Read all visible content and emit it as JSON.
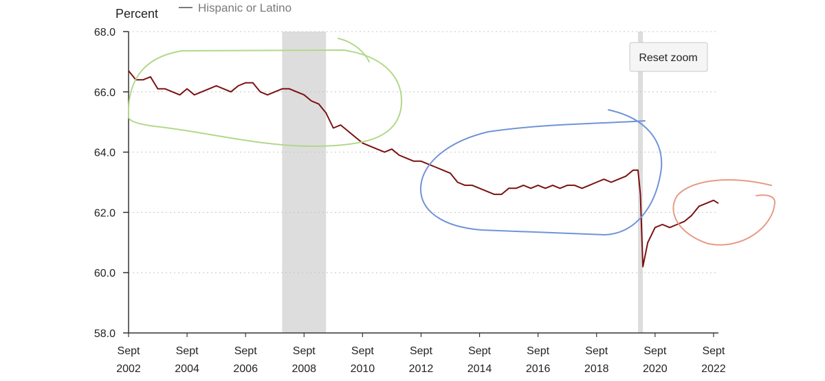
{
  "chart_data": {
    "type": "line",
    "title": "",
    "ylabel": "Percent",
    "xlabel": "",
    "ylim": [
      58.0,
      68.0
    ],
    "xlim": [
      "2002-09",
      "2022-11"
    ],
    "y_ticks": [
      "58.0",
      "60.0",
      "62.0",
      "64.0",
      "66.0",
      "68.0"
    ],
    "x_ticks": [
      {
        "date": "2002-09",
        "top": "Sept",
        "bottom": "2002"
      },
      {
        "date": "2004-09",
        "top": "Sept",
        "bottom": "2004"
      },
      {
        "date": "2006-09",
        "top": "Sept",
        "bottom": "2006"
      },
      {
        "date": "2008-09",
        "top": "Sept",
        "bottom": "2008"
      },
      {
        "date": "2010-09",
        "top": "Sept",
        "bottom": "2010"
      },
      {
        "date": "2012-09",
        "top": "Sept",
        "bottom": "2012"
      },
      {
        "date": "2014-09",
        "top": "Sept",
        "bottom": "2014"
      },
      {
        "date": "2016-09",
        "top": "Sept",
        "bottom": "2016"
      },
      {
        "date": "2018-09",
        "top": "Sept",
        "bottom": "2018"
      },
      {
        "date": "2020-09",
        "top": "Sept",
        "bottom": "2020"
      },
      {
        "date": "2022-09",
        "top": "Sept",
        "bottom": "2022"
      }
    ],
    "grid": true,
    "legend": "top-left",
    "recessions": [
      {
        "start": "2007-12",
        "end": "2009-06"
      },
      {
        "start": "2020-02",
        "end": "2020-04"
      }
    ],
    "series": [
      {
        "name": "Hispanic or Latino",
        "color": "#7a1010",
        "points": [
          [
            "2002-09",
            66.7
          ],
          [
            "2002-12",
            66.4
          ],
          [
            "2003-03",
            66.4
          ],
          [
            "2003-06",
            66.5
          ],
          [
            "2003-09",
            66.1
          ],
          [
            "2003-12",
            66.1
          ],
          [
            "2004-03",
            66.0
          ],
          [
            "2004-06",
            65.9
          ],
          [
            "2004-09",
            66.1
          ],
          [
            "2004-12",
            65.9
          ],
          [
            "2005-03",
            66.0
          ],
          [
            "2005-06",
            66.1
          ],
          [
            "2005-09",
            66.2
          ],
          [
            "2005-12",
            66.1
          ],
          [
            "2006-03",
            66.0
          ],
          [
            "2006-06",
            66.2
          ],
          [
            "2006-09",
            66.3
          ],
          [
            "2006-12",
            66.3
          ],
          [
            "2007-03",
            66.0
          ],
          [
            "2007-06",
            65.9
          ],
          [
            "2007-09",
            66.0
          ],
          [
            "2007-12",
            66.1
          ],
          [
            "2008-03",
            66.1
          ],
          [
            "2008-06",
            66.0
          ],
          [
            "2008-09",
            65.9
          ],
          [
            "2008-12",
            65.7
          ],
          [
            "2009-03",
            65.6
          ],
          [
            "2009-06",
            65.3
          ],
          [
            "2009-09",
            64.8
          ],
          [
            "2009-12",
            64.9
          ],
          [
            "2010-03",
            64.7
          ],
          [
            "2010-06",
            64.5
          ],
          [
            "2010-09",
            64.3
          ],
          [
            "2010-12",
            64.2
          ],
          [
            "2011-03",
            64.1
          ],
          [
            "2011-06",
            64.0
          ],
          [
            "2011-09",
            64.1
          ],
          [
            "2011-12",
            63.9
          ],
          [
            "2012-03",
            63.8
          ],
          [
            "2012-06",
            63.7
          ],
          [
            "2012-09",
            63.7
          ],
          [
            "2012-12",
            63.6
          ],
          [
            "2013-03",
            63.5
          ],
          [
            "2013-06",
            63.4
          ],
          [
            "2013-09",
            63.3
          ],
          [
            "2013-12",
            63.0
          ],
          [
            "2014-03",
            62.9
          ],
          [
            "2014-06",
            62.9
          ],
          [
            "2014-09",
            62.8
          ],
          [
            "2014-12",
            62.7
          ],
          [
            "2015-03",
            62.6
          ],
          [
            "2015-06",
            62.6
          ],
          [
            "2015-09",
            62.8
          ],
          [
            "2015-12",
            62.8
          ],
          [
            "2016-03",
            62.9
          ],
          [
            "2016-06",
            62.8
          ],
          [
            "2016-09",
            62.9
          ],
          [
            "2016-12",
            62.8
          ],
          [
            "2017-03",
            62.9
          ],
          [
            "2017-06",
            62.8
          ],
          [
            "2017-09",
            62.9
          ],
          [
            "2017-12",
            62.9
          ],
          [
            "2018-03",
            62.8
          ],
          [
            "2018-06",
            62.9
          ],
          [
            "2018-09",
            63.0
          ],
          [
            "2018-12",
            63.1
          ],
          [
            "2019-03",
            63.0
          ],
          [
            "2019-06",
            63.1
          ],
          [
            "2019-09",
            63.2
          ],
          [
            "2019-12",
            63.4
          ],
          [
            "2020-02",
            63.4
          ],
          [
            "2020-03",
            62.6
          ],
          [
            "2020-04",
            60.2
          ],
          [
            "2020-06",
            61.0
          ],
          [
            "2020-09",
            61.5
          ],
          [
            "2020-12",
            61.6
          ],
          [
            "2021-03",
            61.5
          ],
          [
            "2021-06",
            61.6
          ],
          [
            "2021-09",
            61.7
          ],
          [
            "2021-12",
            61.9
          ],
          [
            "2022-03",
            62.2
          ],
          [
            "2022-06",
            62.3
          ],
          [
            "2022-09",
            62.4
          ],
          [
            "2022-11",
            62.3
          ]
        ]
      }
    ]
  },
  "ui": {
    "reset_zoom_label": "Reset zoom"
  },
  "annotations": {
    "color_green": "#b2d889",
    "color_blue": "#6f93d8",
    "color_red": "#e79a84"
  }
}
